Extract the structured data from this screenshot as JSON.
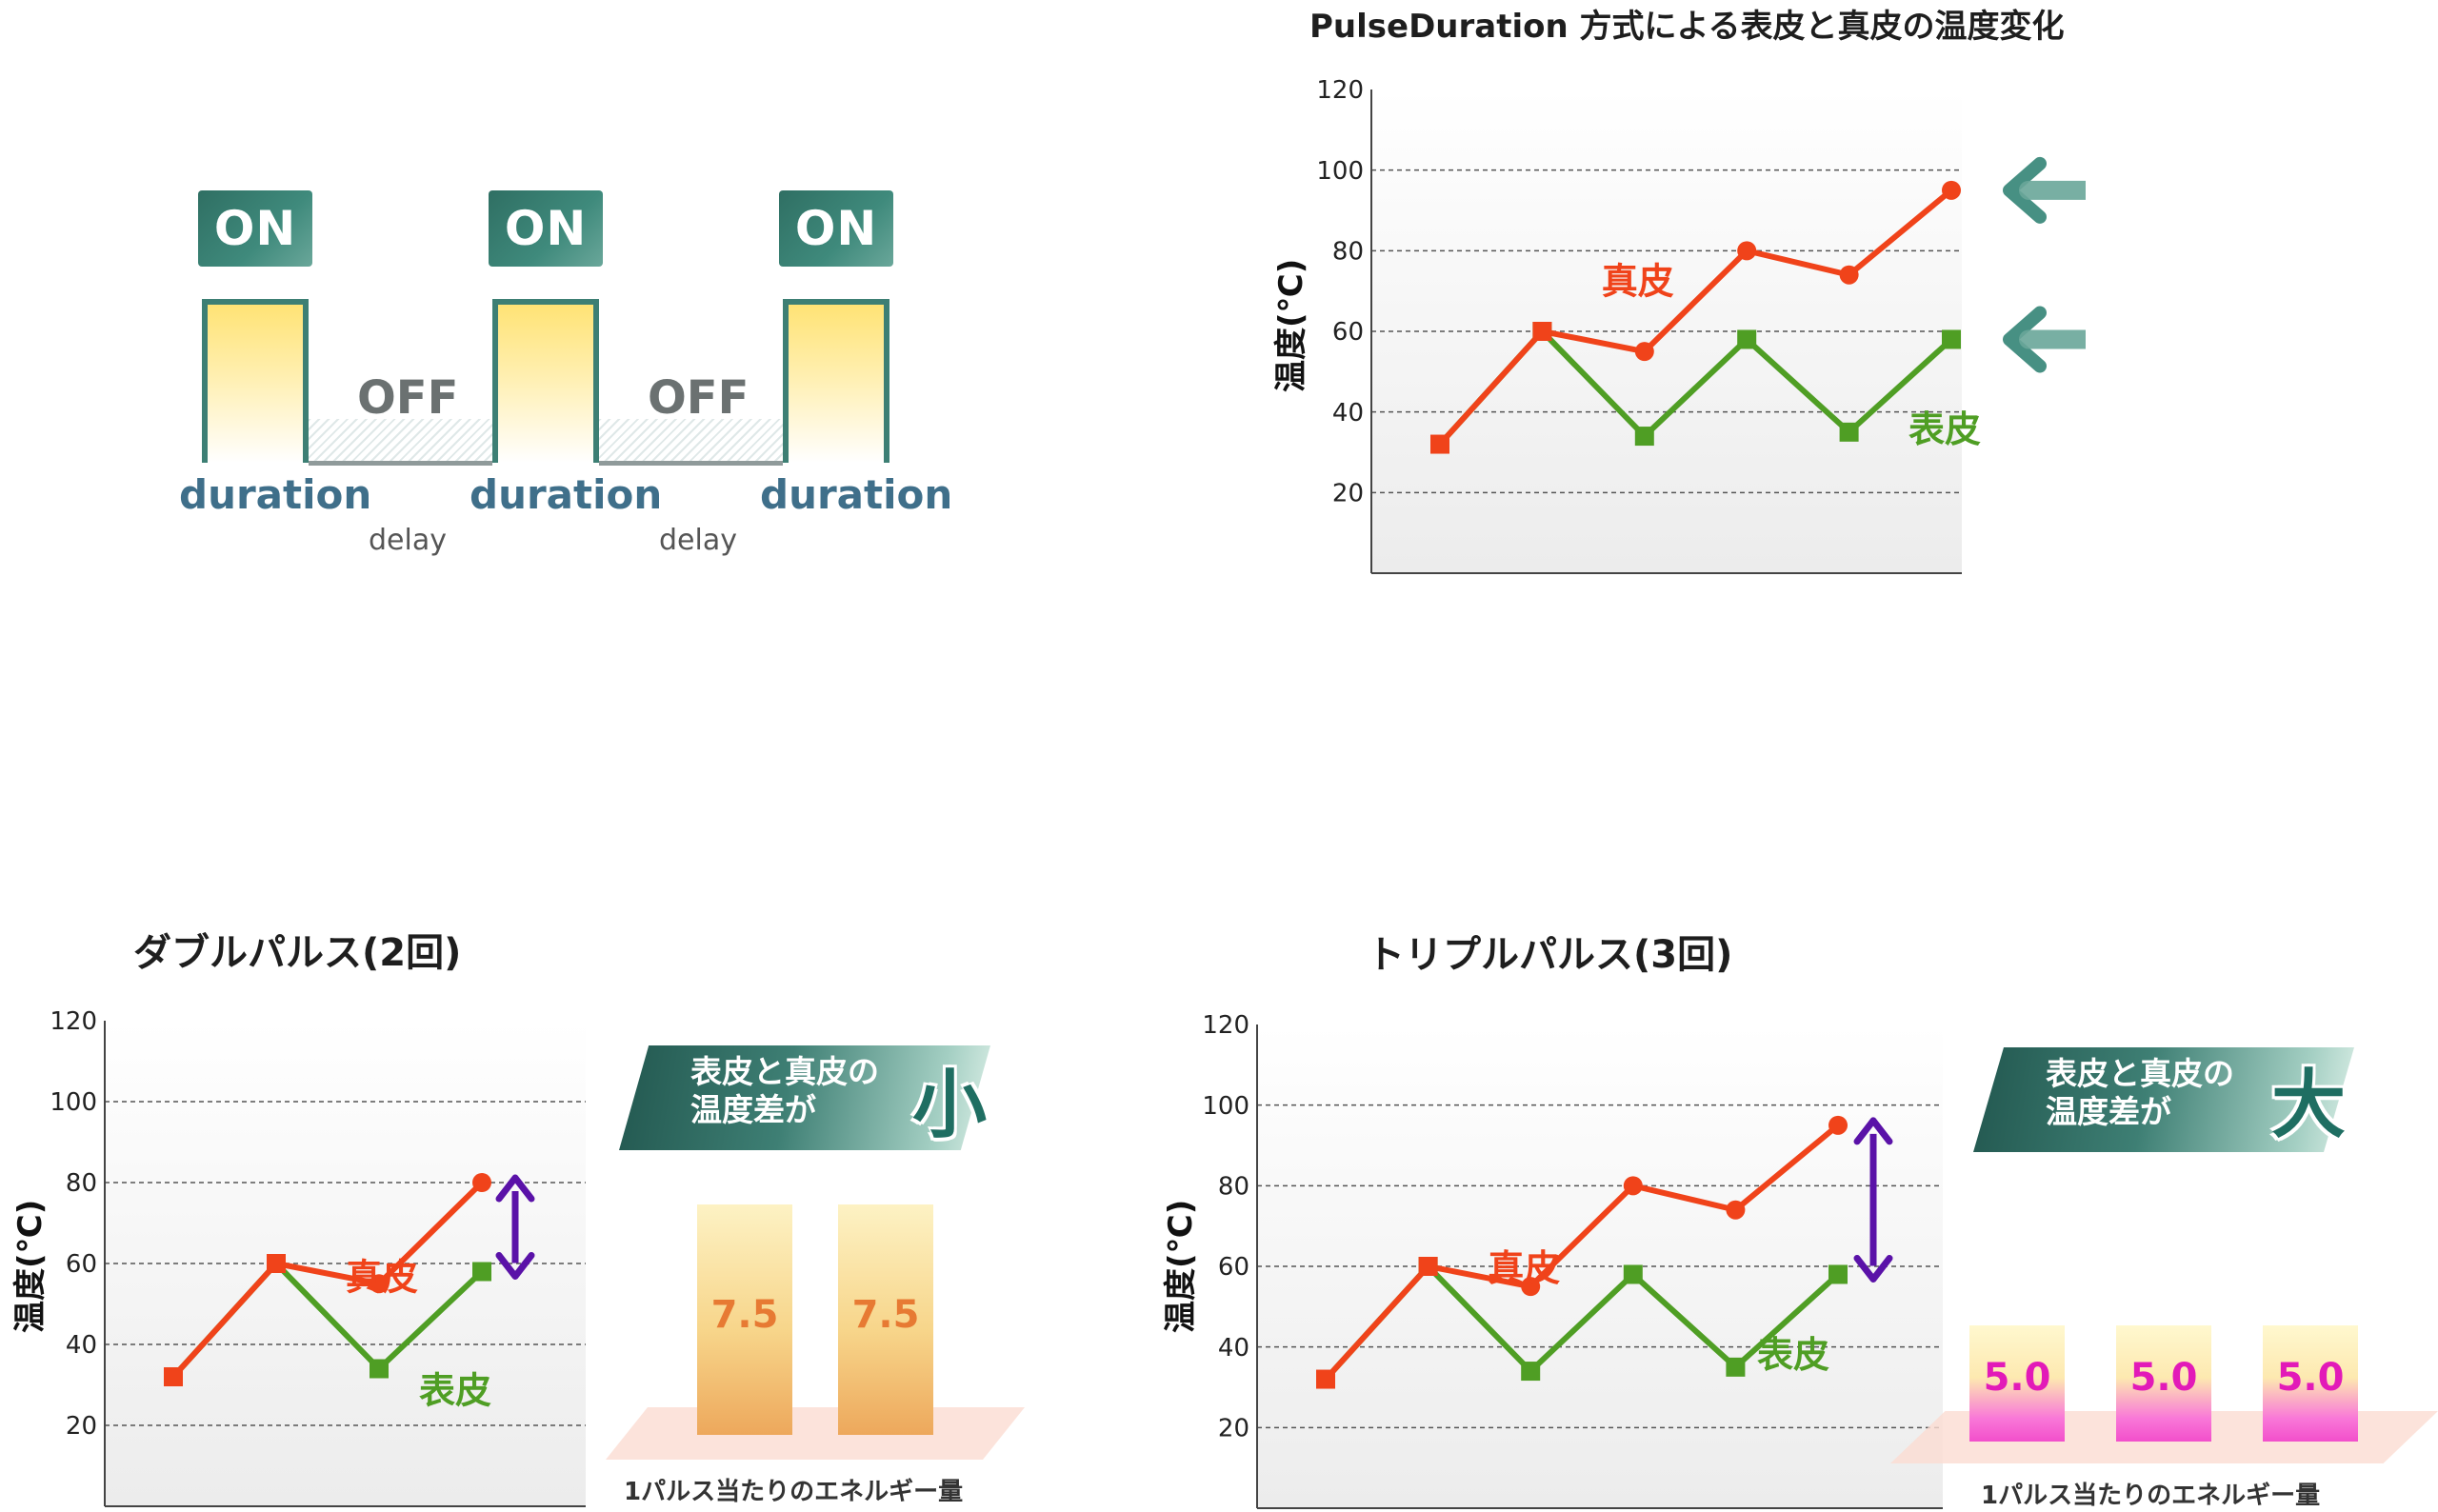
{
  "diagram": {
    "on_labels": [
      "ON",
      "ON",
      "ON"
    ],
    "off_labels": [
      "OFF",
      "OFF"
    ],
    "duration_labels": [
      "duration",
      "duration",
      "duration"
    ],
    "delay_labels": [
      "delay",
      "delay"
    ]
  },
  "annotations": {
    "double_banner_line1": "表皮と真皮の",
    "double_banner_line2": "温度差が",
    "double_banner_big": "小",
    "triple_banner_line1": "表皮と真皮の",
    "triple_banner_line2": "温度差が",
    "triple_banner_big": "大",
    "energy_label": "1パルス当たりのエネルギー量",
    "double_energy": [
      "7.5",
      "7.5"
    ],
    "triple_energy": [
      "5.0",
      "5.0",
      "5.0"
    ]
  },
  "colors": {
    "dermis": "#f0431a",
    "epidermis": "#4f9e24",
    "arrow_teal": "#3d8a7c",
    "diff_arrow": "#5a12a8"
  },
  "chart_data": [
    {
      "type": "line",
      "title": "PulseDuration 方式による表皮と真皮の温度変化",
      "ylabel": "温度(℃)",
      "ylim": [
        0,
        120
      ],
      "yticks": [
        20,
        40,
        60,
        80,
        100,
        120
      ],
      "grid": true,
      "x": [
        1,
        2,
        3,
        4,
        5,
        6
      ],
      "series": [
        {
          "name": "真皮",
          "values": [
            32,
            60,
            55,
            80,
            74,
            95
          ]
        },
        {
          "name": "表皮",
          "values": [
            32,
            60,
            34,
            58,
            35,
            58
          ]
        }
      ],
      "markers": {
        "dermis_level": 95,
        "epidermis_level": 58
      }
    },
    {
      "type": "line",
      "title": "ダブルパルス(2回)",
      "ylabel": "温度(℃)",
      "ylim": [
        0,
        120
      ],
      "yticks": [
        20,
        40,
        60,
        80,
        100,
        120
      ],
      "grid": true,
      "x": [
        1,
        2,
        3,
        4
      ],
      "series": [
        {
          "name": "真皮",
          "values": [
            32,
            60,
            55,
            80
          ]
        },
        {
          "name": "表皮",
          "values": [
            32,
            60,
            34,
            58
          ]
        }
      ]
    },
    {
      "type": "line",
      "title": "トリプルパルス(3回)",
      "ylabel": "温度(℃)",
      "ylim": [
        0,
        120
      ],
      "yticks": [
        20,
        40,
        60,
        80,
        100,
        120
      ],
      "grid": true,
      "x": [
        1,
        2,
        3,
        4,
        5,
        6
      ],
      "series": [
        {
          "name": "真皮",
          "values": [
            32,
            60,
            55,
            80,
            74,
            95
          ]
        },
        {
          "name": "表皮",
          "values": [
            32,
            60,
            34,
            58,
            35,
            58
          ]
        }
      ]
    }
  ]
}
